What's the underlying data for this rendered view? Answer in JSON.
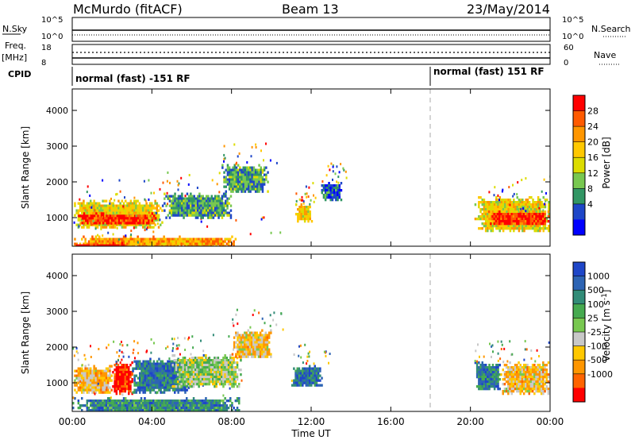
{
  "header": {
    "station": "McMurdo (fitACF)",
    "beam": "Beam 13",
    "date": "23/May/2014"
  },
  "top_panels": {
    "nsky_label": "N.Sky",
    "nsky_ticks": [
      "10^5",
      "10^0"
    ],
    "nsearch_label": "N.Search",
    "nsearch_ticks": [
      "10^5",
      "10^0"
    ],
    "freq_label": "Freq.",
    "freq_unit": "[MHz]",
    "freq_ticks": [
      "18",
      "8"
    ],
    "nave_label": "Nave",
    "nave_ticks": [
      "60",
      "0"
    ],
    "cpid_label": "CPID",
    "cpid_segments": [
      {
        "label": "normal (fast) -151 RF",
        "start_hour": 0,
        "end_hour": 18
      },
      {
        "label": "normal (fast) 151 RF",
        "start_hour": 18,
        "end_hour": 24
      }
    ]
  },
  "chart_data": [
    {
      "type": "heatmap",
      "name": "power-panel",
      "ylabel": "Slant Range [km]",
      "yticks": [
        "4000",
        "3000",
        "2000",
        "1000"
      ],
      "ylim": [
        200,
        4600
      ],
      "xlim": [
        0,
        24
      ],
      "colorbar": {
        "label": "Power [dB]",
        "ticks": [
          "28",
          "24",
          "20",
          "16",
          "12",
          "8",
          "4"
        ],
        "colors": [
          "#ff0000",
          "#ff5a00",
          "#ff9600",
          "#ffc800",
          "#dcdc00",
          "#78c850",
          "#329664",
          "#1e46c8",
          "#0000ff"
        ]
      },
      "blobs": [
        {
          "t0": 0.0,
          "t1": 4.5,
          "r0": 700,
          "r1": 1500,
          "level": 0.55
        },
        {
          "t0": 0.2,
          "t1": 4.2,
          "r0": 850,
          "r1": 1150,
          "level": 0.9
        },
        {
          "t0": 0.0,
          "t1": 8.5,
          "r0": 200,
          "r1": 500,
          "level": 0.7
        },
        {
          "t0": 0.0,
          "t1": 3.0,
          "r0": 200,
          "r1": 320,
          "level": 0.95
        },
        {
          "t0": 4.5,
          "t1": 8.0,
          "r0": 1000,
          "r1": 1700,
          "level": 0.3
        },
        {
          "t0": 7.5,
          "t1": 9.8,
          "r0": 1700,
          "r1": 2500,
          "level": 0.3
        },
        {
          "t0": 11.2,
          "t1": 12.0,
          "r0": 900,
          "r1": 1400,
          "level": 0.6
        },
        {
          "t0": 12.5,
          "t1": 13.5,
          "r0": 1500,
          "r1": 2000,
          "level": 0.2
        },
        {
          "t0": 20.2,
          "t1": 24.0,
          "r0": 600,
          "r1": 1600,
          "level": 0.55
        },
        {
          "t0": 20.8,
          "t1": 24.0,
          "r0": 800,
          "r1": 1200,
          "level": 0.9
        }
      ]
    },
    {
      "type": "heatmap",
      "name": "velocity-panel",
      "ylabel": "Slant Range [km]",
      "yticks": [
        "4000",
        "3000",
        "2000",
        "1000"
      ],
      "ylim": [
        200,
        4600
      ],
      "xlim": [
        0,
        24
      ],
      "xticks": [
        "00:00",
        "04:00",
        "08:00",
        "12:00",
        "16:00",
        "20:00",
        "00:00"
      ],
      "xlabel": "Time UT",
      "colorbar": {
        "label": "Velocity [m s",
        "label_sup": "-1",
        "label_end": "]",
        "ticks": [
          "1000",
          "500",
          "100",
          "25",
          "-25",
          "-100",
          "-500",
          "-1000"
        ],
        "colors": [
          "#1e46c8",
          "#2d64b4",
          "#328c78",
          "#46aa50",
          "#78c850",
          "#c8c8c8",
          "#ffc800",
          "#ff9600",
          "#ff6400",
          "#ff0000"
        ]
      },
      "blobs": [
        {
          "t0": 0.0,
          "t1": 2.0,
          "r0": 700,
          "r1": 1500,
          "level": 0.35
        },
        {
          "t0": 2.0,
          "t1": 3.0,
          "r0": 700,
          "r1": 1600,
          "level": 0.05
        },
        {
          "t0": 3.0,
          "t1": 6.0,
          "r0": 700,
          "r1": 1700,
          "level": 0.8
        },
        {
          "t0": 0.0,
          "t1": 8.5,
          "r0": 200,
          "r1": 600,
          "level": 0.75
        },
        {
          "t0": 5.0,
          "t1": 8.5,
          "r0": 900,
          "r1": 1800,
          "level": 0.5
        },
        {
          "t0": 8.0,
          "t1": 10.0,
          "r0": 1700,
          "r1": 2500,
          "level": 0.35
        },
        {
          "t0": 11.0,
          "t1": 12.5,
          "r0": 900,
          "r1": 1500,
          "level": 0.8
        },
        {
          "t0": 20.2,
          "t1": 21.5,
          "r0": 800,
          "r1": 1600,
          "level": 0.8
        },
        {
          "t0": 21.5,
          "t1": 24.0,
          "r0": 700,
          "r1": 1600,
          "level": 0.35
        }
      ]
    }
  ]
}
